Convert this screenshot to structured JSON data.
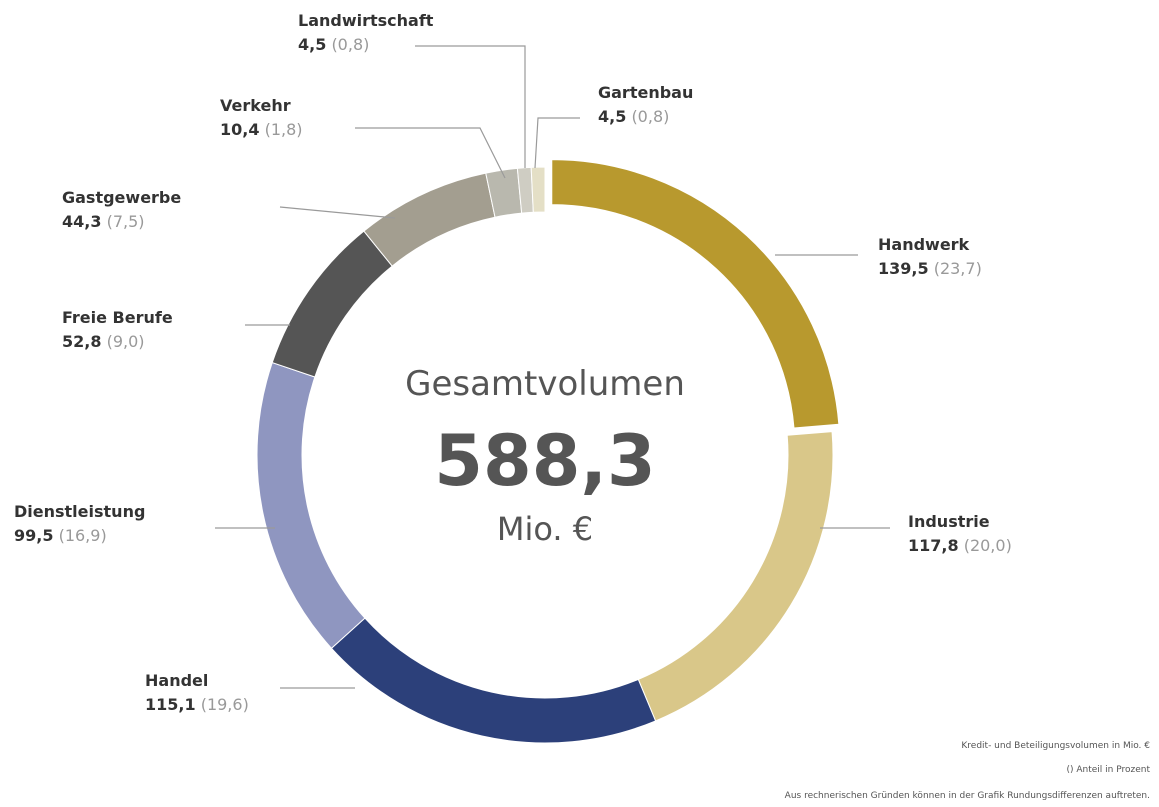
{
  "chart_data": {
    "type": "donut",
    "categories": [
      "Handwerk",
      "Industrie",
      "Handel",
      "Dienstleistung",
      "Freie Berufe",
      "Gastgewerbe",
      "Verkehr",
      "Landwirtschaft",
      "Gartenbau"
    ],
    "values": [
      139.5,
      117.8,
      115.1,
      99.5,
      52.8,
      44.3,
      10.4,
      4.5,
      4.5
    ],
    "value_labels": [
      "139,5",
      "117,8",
      "115,1",
      "99,5",
      "52,8",
      "44,3",
      "10,4",
      "4,5",
      "4,5"
    ],
    "share_values": [
      23.7,
      20.0,
      19.6,
      16.9,
      9.0,
      7.5,
      1.8,
      0.8,
      0.8
    ],
    "share_labels": [
      "(23,7)",
      "(20,0)",
      "(19,6)",
      "(16,9)",
      "(9,0)",
      "(7,5)",
      "(1,8)",
      "(0,8)",
      "(0,8)"
    ],
    "colors": [
      "#b8992e",
      "#d9c789",
      "#2c407a",
      "#8f96c0",
      "#555555",
      "#a39e90",
      "#b9b8ae",
      "#cfcdc3",
      "#e4dfc6"
    ],
    "center": {
      "title": "Gesamtvolumen",
      "value": 588.3,
      "value_label": "588,3",
      "unit": "Mio. €"
    },
    "notes": [
      "Kredit- und Beteiligungsvolumen in Mio. €",
      "() Anteil in Prozent",
      "Aus rechnerischen Gründen können in der Grafik Rundungsdifferenzen auftreten."
    ]
  }
}
